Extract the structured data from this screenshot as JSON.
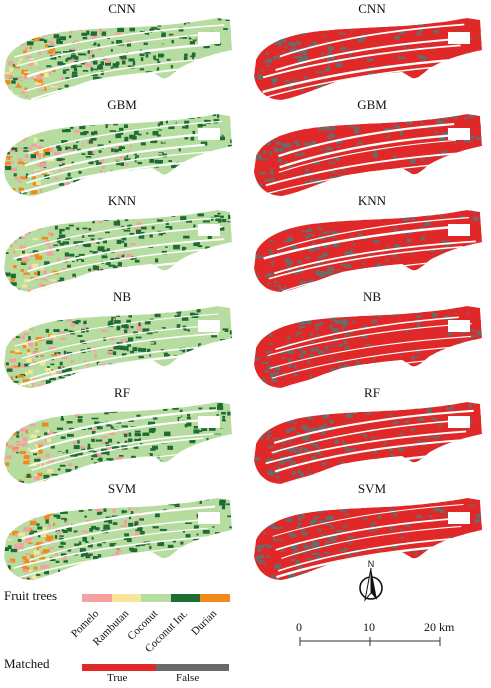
{
  "panels_left": [
    {
      "title": "CNN"
    },
    {
      "title": "GBM"
    },
    {
      "title": "KNN"
    },
    {
      "title": "NB"
    },
    {
      "title": "RF"
    },
    {
      "title": "SVM"
    }
  ],
  "panels_right": [
    {
      "title": "CNN"
    },
    {
      "title": "GBM"
    },
    {
      "title": "KNN"
    },
    {
      "title": "NB"
    },
    {
      "title": "RF"
    },
    {
      "title": "SVM"
    }
  ],
  "legend": {
    "fruit_title": "Fruit trees",
    "classes": [
      {
        "label": "Pomelo",
        "color": "#f4a0a0"
      },
      {
        "label": "Rambutan",
        "color": "#f7e59a"
      },
      {
        "label": "Coconut",
        "color": "#b7dca0"
      },
      {
        "label": "Coconut Int.",
        "color": "#1f6b35"
      },
      {
        "label": "Durian",
        "color": "#f08a1c"
      }
    ],
    "matched_title": "Matched",
    "matched": [
      {
        "label": "True",
        "color": "#e02828"
      },
      {
        "label": "False",
        "color": "#6a6a6a"
      }
    ]
  },
  "scale_bar": {
    "labels": [
      "0",
      "10",
      "20 km"
    ]
  },
  "north_arrow": {
    "label": "N",
    "icon": "north-arrow-icon"
  }
}
